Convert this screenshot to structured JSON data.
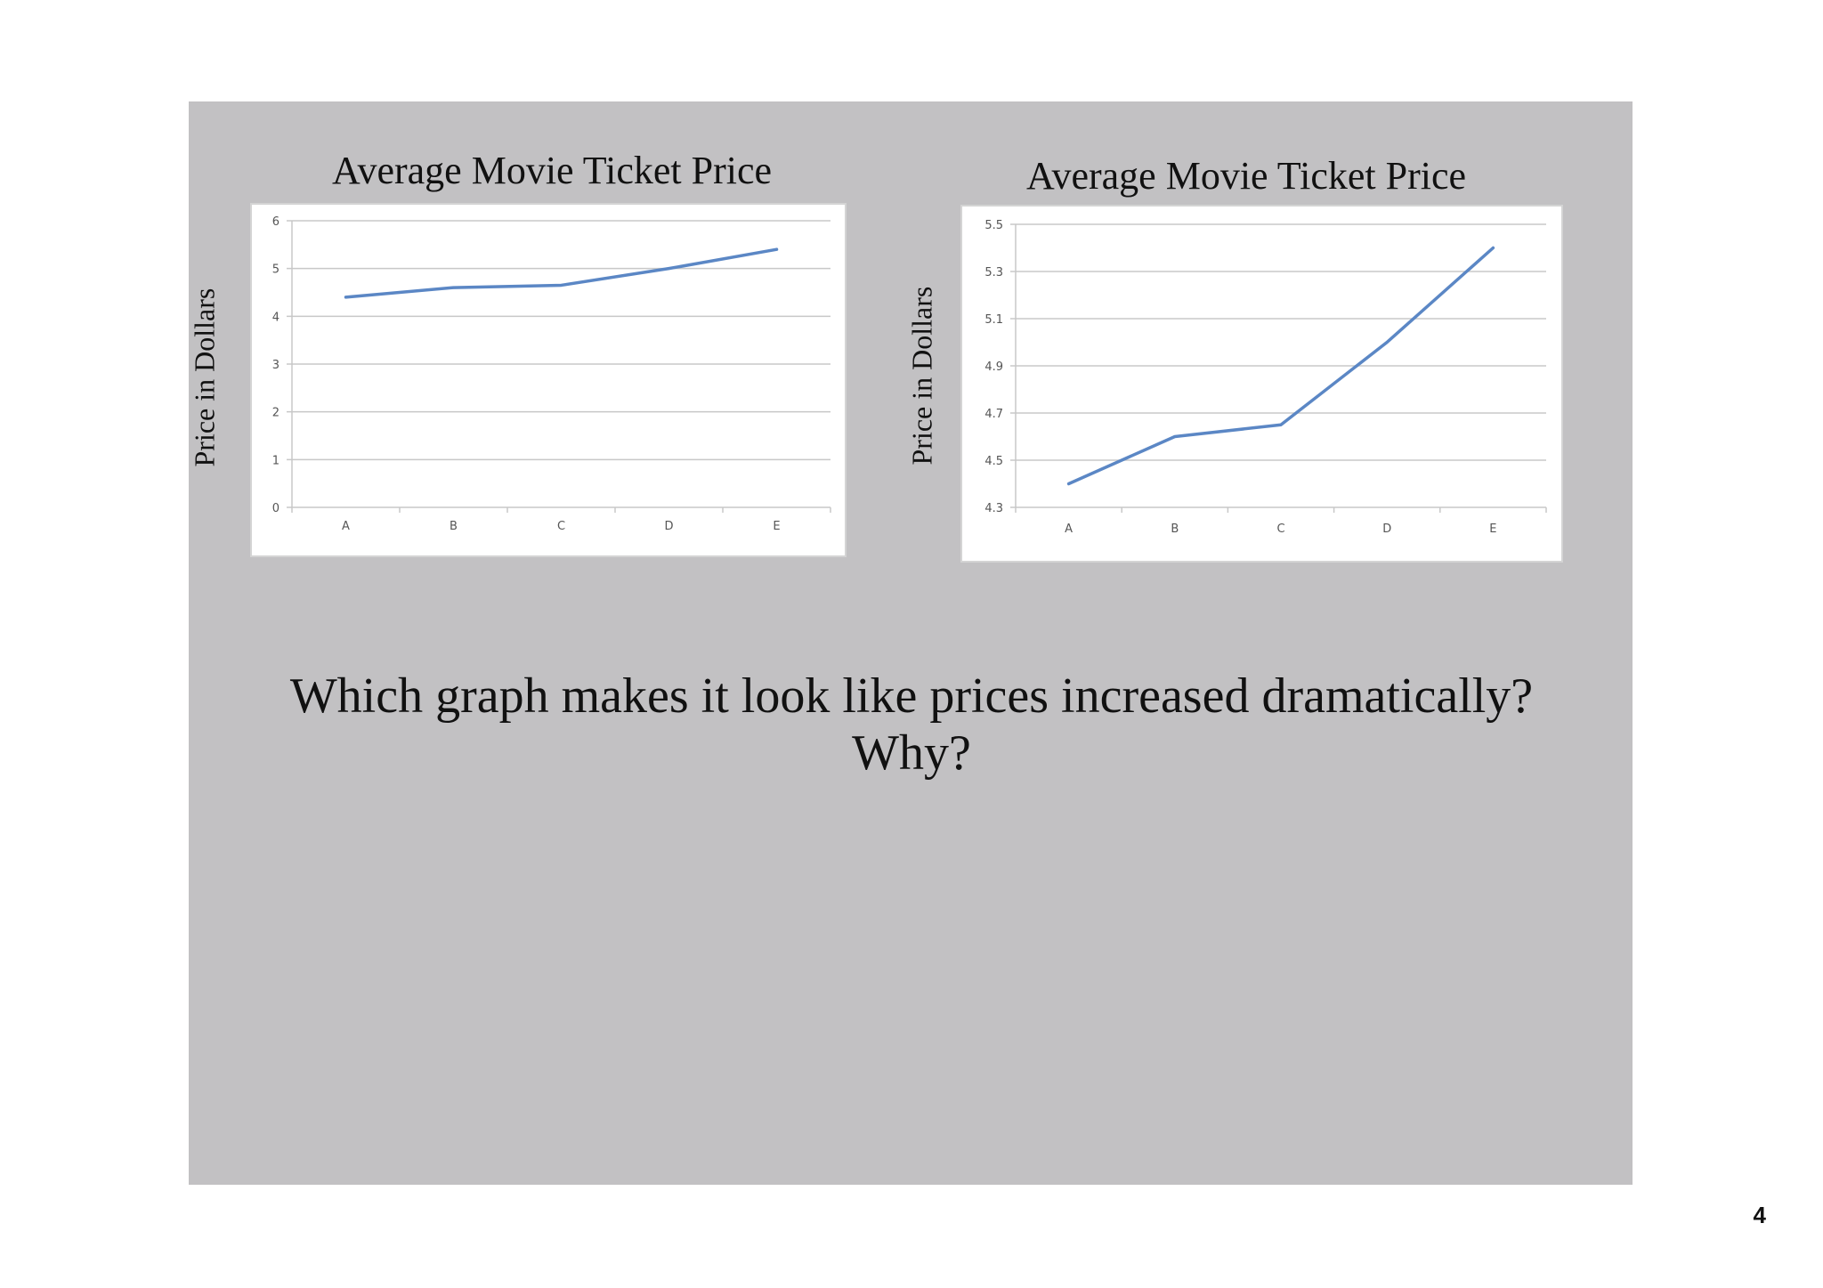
{
  "question": {
    "line1": "Which graph makes it look like prices increased dramatically?",
    "line2": "Why?"
  },
  "page_number": "4",
  "colors": {
    "slide_background": "#c2c1c3",
    "line": "#5b87c5",
    "grid": "#c8c8c8",
    "tick_text": "#555555"
  },
  "chart_data": [
    {
      "type": "line",
      "title": "Average Movie Ticket Price",
      "ylabel": "Price in Dollars",
      "xlabel": "",
      "categories": [
        "A",
        "B",
        "C",
        "D",
        "E"
      ],
      "series": [
        {
          "values": [
            4.4,
            4.6,
            4.65,
            5.0,
            5.4
          ]
        }
      ],
      "ylim": [
        0,
        6
      ],
      "yticks": [
        "0",
        "1",
        "2",
        "3",
        "4",
        "5",
        "6"
      ],
      "grid": true
    },
    {
      "type": "line",
      "title": "Average Movie Ticket Price",
      "ylabel": "Price in Dollars",
      "xlabel": "",
      "categories": [
        "A",
        "B",
        "C",
        "D",
        "E"
      ],
      "series": [
        {
          "values": [
            4.4,
            4.6,
            4.65,
            5.0,
            5.4
          ]
        }
      ],
      "ylim": [
        4.3,
        5.5
      ],
      "yticks": [
        "4.3",
        "4.5",
        "4.7",
        "4.9",
        "5.1",
        "5.3",
        "5.5"
      ],
      "grid": true
    }
  ]
}
